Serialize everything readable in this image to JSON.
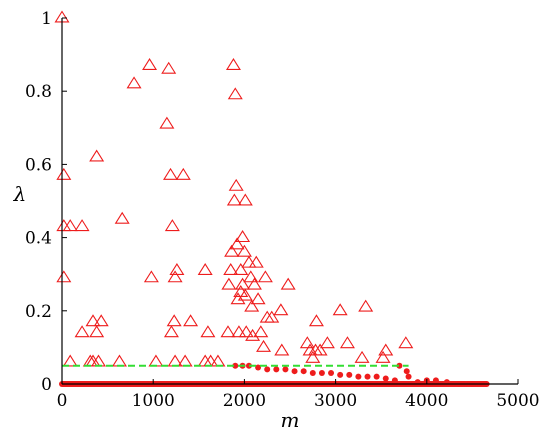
{
  "chart_data": {
    "type": "scatter",
    "xlabel": "m",
    "ylabel": "λ",
    "xlim": [
      0,
      5000
    ],
    "ylim": [
      0,
      1
    ],
    "xticks": [
      0,
      1000,
      2000,
      3000,
      4000,
      5000
    ],
    "yticks": [
      0,
      0.2,
      0.4,
      0.6,
      0.8,
      1
    ],
    "xtick_labels": [
      "0",
      "1000",
      "2000",
      "3000",
      "4000",
      "5000"
    ],
    "ytick_labels": [
      "0",
      "0.2",
      "0.4",
      "0.6",
      "0.8",
      "1"
    ],
    "grid": false,
    "colors": {
      "points": "#ee1c1c",
      "threshold": "#33dd33",
      "axis": "#000000"
    },
    "threshold": {
      "y": 0.05,
      "style": "dashed"
    },
    "series": [
      {
        "marker": "open-triangle",
        "points": [
          [
            0,
            1.0
          ],
          [
            20,
            0.57
          ],
          [
            20,
            0.29
          ],
          [
            20,
            0.43
          ],
          [
            90,
            0.43
          ],
          [
            90,
            0.06
          ],
          [
            220,
            0.43
          ],
          [
            220,
            0.14
          ],
          [
            310,
            0.06
          ],
          [
            340,
            0.06
          ],
          [
            340,
            0.17
          ],
          [
            380,
            0.62
          ],
          [
            380,
            0.14
          ],
          [
            400,
            0.06
          ],
          [
            430,
            0.17
          ],
          [
            630,
            0.06
          ],
          [
            660,
            0.45
          ],
          [
            790,
            0.82
          ],
          [
            960,
            0.87
          ],
          [
            980,
            0.29
          ],
          [
            1030,
            0.06
          ],
          [
            1150,
            0.71
          ],
          [
            1170,
            0.86
          ],
          [
            1190,
            0.57
          ],
          [
            1200,
            0.14
          ],
          [
            1210,
            0.43
          ],
          [
            1230,
            0.17
          ],
          [
            1240,
            0.29
          ],
          [
            1240,
            0.06
          ],
          [
            1260,
            0.31
          ],
          [
            1330,
            0.57
          ],
          [
            1350,
            0.06
          ],
          [
            1410,
            0.17
          ],
          [
            1570,
            0.31
          ],
          [
            1570,
            0.06
          ],
          [
            1600,
            0.14
          ],
          [
            1630,
            0.06
          ],
          [
            1710,
            0.06
          ],
          [
            1820,
            0.14
          ],
          [
            1830,
            0.27
          ],
          [
            1850,
            0.31
          ],
          [
            1860,
            0.36
          ],
          [
            1880,
            0.87
          ],
          [
            1890,
            0.5
          ],
          [
            1900,
            0.79
          ],
          [
            1910,
            0.54
          ],
          [
            1920,
            0.38
          ],
          [
            1930,
            0.23
          ],
          [
            1940,
            0.14
          ],
          [
            1960,
            0.25
          ],
          [
            1960,
            0.31
          ],
          [
            1980,
            0.4
          ],
          [
            1980,
            0.27
          ],
          [
            2000,
            0.36
          ],
          [
            2010,
            0.5
          ],
          [
            2010,
            0.24
          ],
          [
            2020,
            0.14
          ],
          [
            2050,
            0.33
          ],
          [
            2070,
            0.29
          ],
          [
            2080,
            0.21
          ],
          [
            2090,
            0.13
          ],
          [
            2110,
            0.27
          ],
          [
            2130,
            0.33
          ],
          [
            2150,
            0.23
          ],
          [
            2180,
            0.14
          ],
          [
            2210,
            0.1
          ],
          [
            2230,
            0.29
          ],
          [
            2250,
            0.18
          ],
          [
            2300,
            0.18
          ],
          [
            2400,
            0.2
          ],
          [
            2410,
            0.09
          ],
          [
            2480,
            0.27
          ],
          [
            2690,
            0.11
          ],
          [
            2720,
            0.09
          ],
          [
            2750,
            0.07
          ],
          [
            2780,
            0.09
          ],
          [
            2790,
            0.17
          ],
          [
            2830,
            0.09
          ],
          [
            2910,
            0.11
          ],
          [
            3050,
            0.2
          ],
          [
            3130,
            0.11
          ],
          [
            3290,
            0.07
          ],
          [
            3330,
            0.21
          ],
          [
            3520,
            0.07
          ],
          [
            3550,
            0.09
          ],
          [
            3770,
            0.11
          ]
        ]
      },
      {
        "marker": "filled-dot",
        "points": [
          [
            1900,
            0.05
          ],
          [
            1980,
            0.05
          ],
          [
            2050,
            0.05
          ],
          [
            2150,
            0.045
          ],
          [
            2250,
            0.04
          ],
          [
            2350,
            0.04
          ],
          [
            2450,
            0.04
          ],
          [
            2550,
            0.035
          ],
          [
            2650,
            0.035
          ],
          [
            2750,
            0.03
          ],
          [
            2850,
            0.03
          ],
          [
            2950,
            0.03
          ],
          [
            3050,
            0.025
          ],
          [
            3150,
            0.025
          ],
          [
            3250,
            0.02
          ],
          [
            3350,
            0.02
          ],
          [
            3450,
            0.02
          ],
          [
            3550,
            0.015
          ],
          [
            3650,
            0.01
          ],
          [
            3700,
            0.05
          ],
          [
            3780,
            0.035
          ],
          [
            3800,
            0.02
          ],
          [
            3900,
            0.005
          ],
          [
            4000,
            0.01
          ],
          [
            4100,
            0.01
          ],
          [
            4220,
            0.005
          ],
          [
            4350,
            0.0
          ],
          [
            4500,
            0.0
          ],
          [
            4650,
            0.0
          ]
        ]
      }
    ]
  }
}
